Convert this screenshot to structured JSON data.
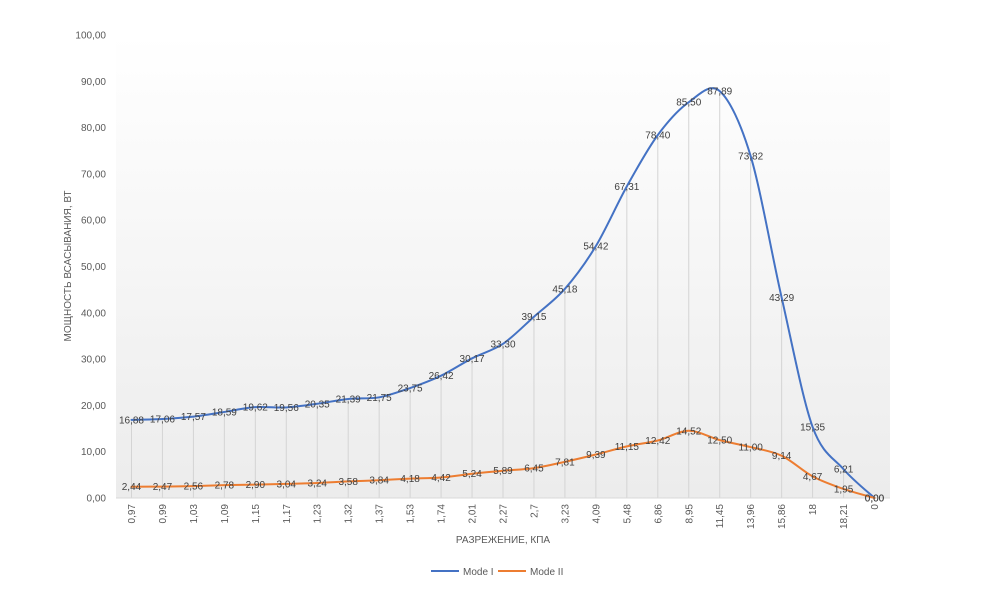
{
  "chart_data": {
    "type": "line",
    "title": "",
    "xlabel": "РАЗРЕЖЕНИЕ, КПА",
    "ylabel": "МОЩНОСТЬ ВСАСЫВАНИЯ, ВТ",
    "ylim": [
      0,
      100
    ],
    "y_ticks": [
      "0,00",
      "10,00",
      "20,00",
      "30,00",
      "40,00",
      "50,00",
      "60,00",
      "70,00",
      "80,00",
      "90,00",
      "100,00"
    ],
    "categories": [
      "0,97",
      "0,99",
      "1,03",
      "1,09",
      "1,15",
      "1,17",
      "1,23",
      "1,32",
      "1,37",
      "1,53",
      "1,74",
      "2,01",
      "2,27",
      "2,7",
      "3,23",
      "4,09",
      "5,48",
      "6,86",
      "8,95",
      "11,45",
      "13,96",
      "15,86",
      "18",
      "18,21",
      "0"
    ],
    "legend_position": "bottom",
    "series": [
      {
        "name": "Mode I",
        "color": "#4472C4",
        "values": [
          16.88,
          17.06,
          17.57,
          18.59,
          19.62,
          19.56,
          20.35,
          21.39,
          21.75,
          23.75,
          26.42,
          30.17,
          33.3,
          39.15,
          45.18,
          54.42,
          67.31,
          78.4,
          85.5,
          87.89,
          73.82,
          43.29,
          15.35,
          6.21,
          0.0
        ],
        "labels": [
          "16,88",
          "17,06",
          "17,57",
          "18,59",
          "19,62",
          "19,56",
          "20,35",
          "21,39",
          "21,75",
          "23,75",
          "26,42",
          "30,17",
          "33,30",
          "39,15",
          "45,18",
          "54,42",
          "67,31",
          "78,40",
          "85,50",
          "87,89",
          "73,82",
          "43,29",
          "15,35",
          "6,21",
          "0,00"
        ]
      },
      {
        "name": "Mode II",
        "color": "#ED7D31",
        "values": [
          2.44,
          2.47,
          2.56,
          2.78,
          2.9,
          3.04,
          3.24,
          3.58,
          3.84,
          4.18,
          4.42,
          5.24,
          5.89,
          6.45,
          7.81,
          9.39,
          11.15,
          12.42,
          14.52,
          12.5,
          11.0,
          9.14,
          4.67,
          1.95,
          0.0
        ],
        "labels": [
          "2,44",
          "2,47",
          "2,56",
          "2,78",
          "2,90",
          "3,04",
          "3,24",
          "3,58",
          "3,84",
          "4,18",
          "4,42",
          "5,24",
          "5,89",
          "6,45",
          "7,81",
          "9,39",
          "11,15",
          "12,42",
          "14,52",
          "12,50",
          "11,00",
          "9,14",
          "4,67",
          "1,95",
          "0,00"
        ]
      }
    ]
  }
}
